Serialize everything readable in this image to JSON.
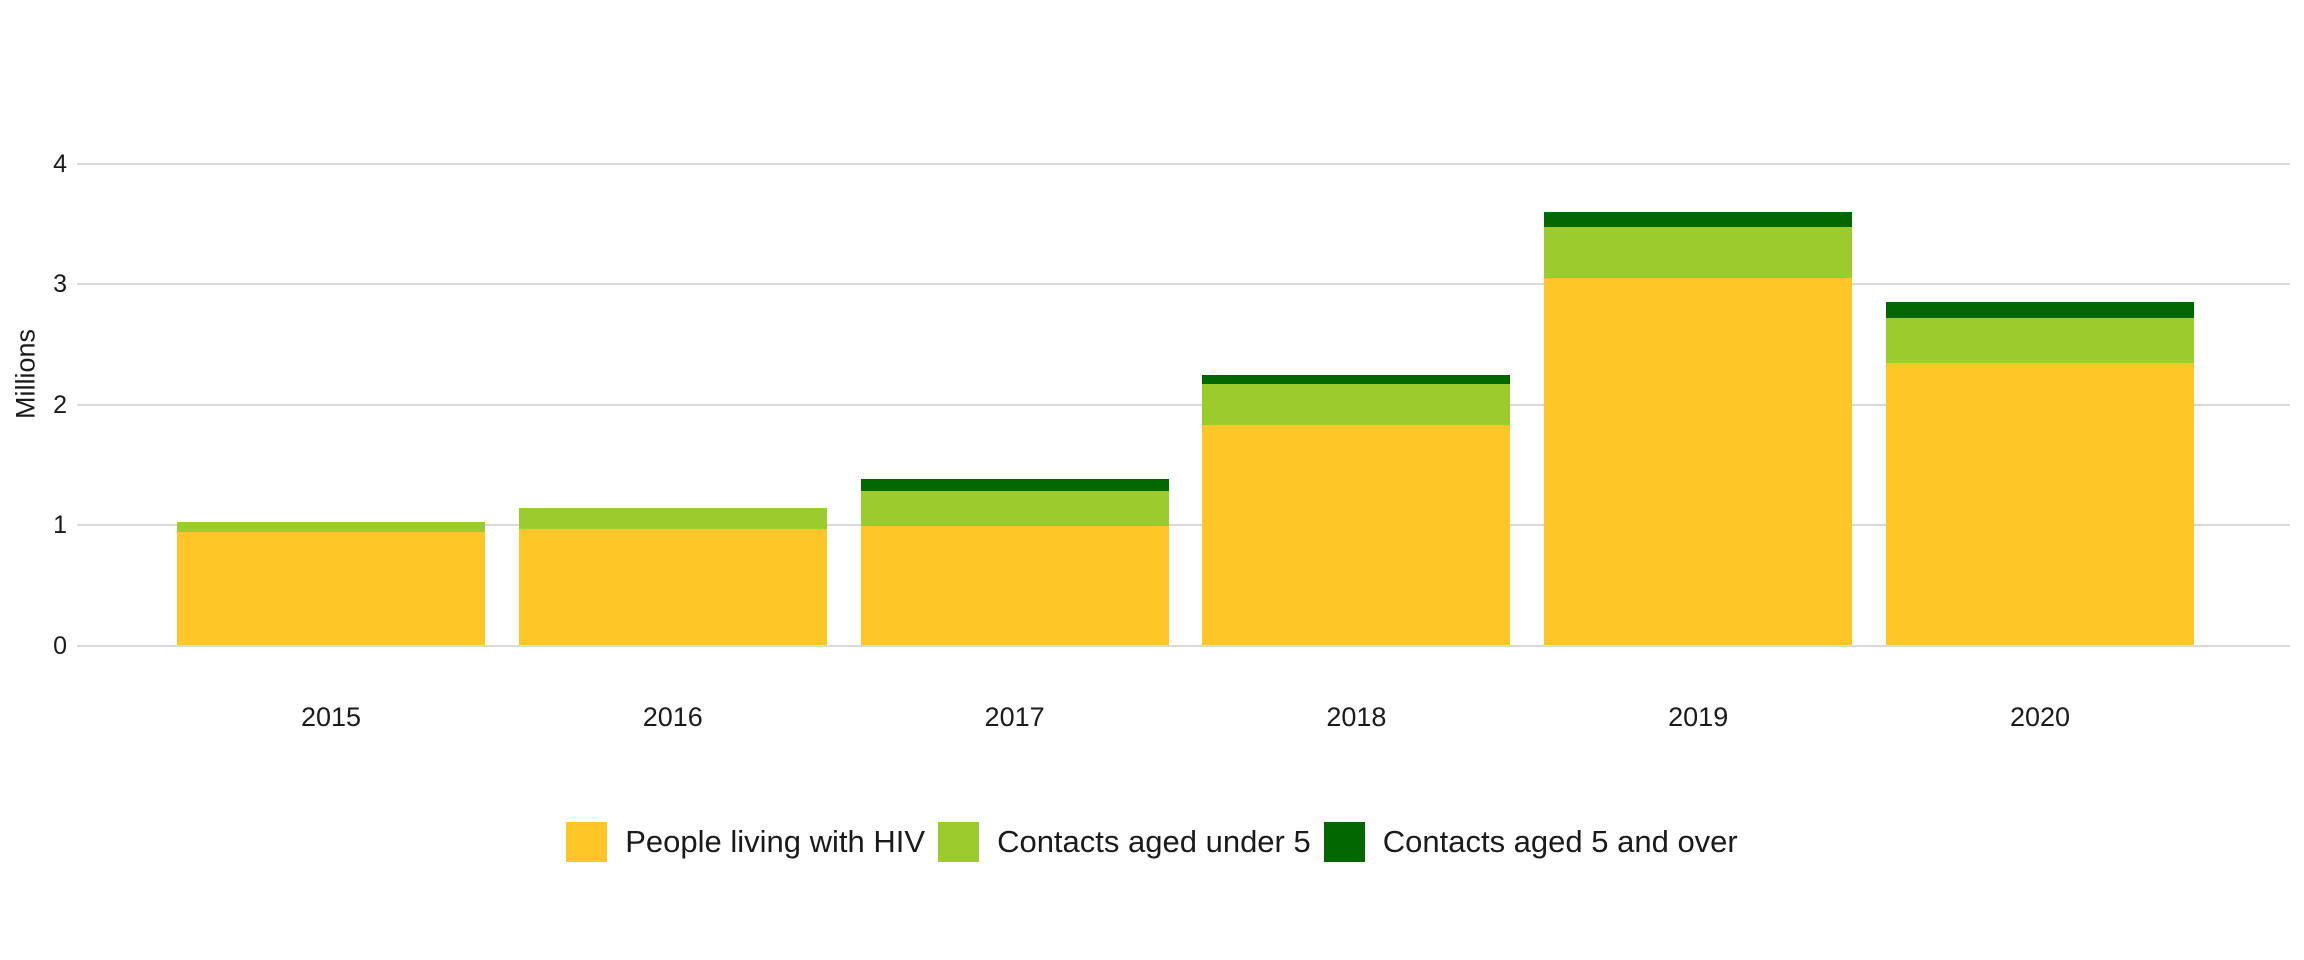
{
  "chart_data": {
    "type": "bar",
    "stacked": true,
    "title": "",
    "xlabel": "",
    "ylabel": "Millions",
    "categories": [
      "2015",
      "2016",
      "2017",
      "2018",
      "2019",
      "2020"
    ],
    "series": [
      {
        "name": "People living with HIV",
        "color": "#FFC628",
        "values": [
          0.94,
          0.97,
          0.99,
          1.83,
          3.05,
          2.35
        ]
      },
      {
        "name": "Contacts aged under 5",
        "color": "#9BCB2D",
        "values": [
          0.09,
          0.17,
          0.29,
          0.34,
          0.43,
          0.37
        ]
      },
      {
        "name": "Contacts aged 5 and over",
        "color": "#006600",
        "values": [
          0,
          0,
          0.1,
          0.08,
          0.12,
          0.13
        ]
      }
    ],
    "yticks": [
      0,
      1,
      2,
      3,
      4
    ],
    "ylim": [
      0,
      4
    ],
    "grid": true,
    "gridline_color": "#d9d9d9",
    "text_color": "#1a1a1a",
    "legend_position": "bottom"
  }
}
